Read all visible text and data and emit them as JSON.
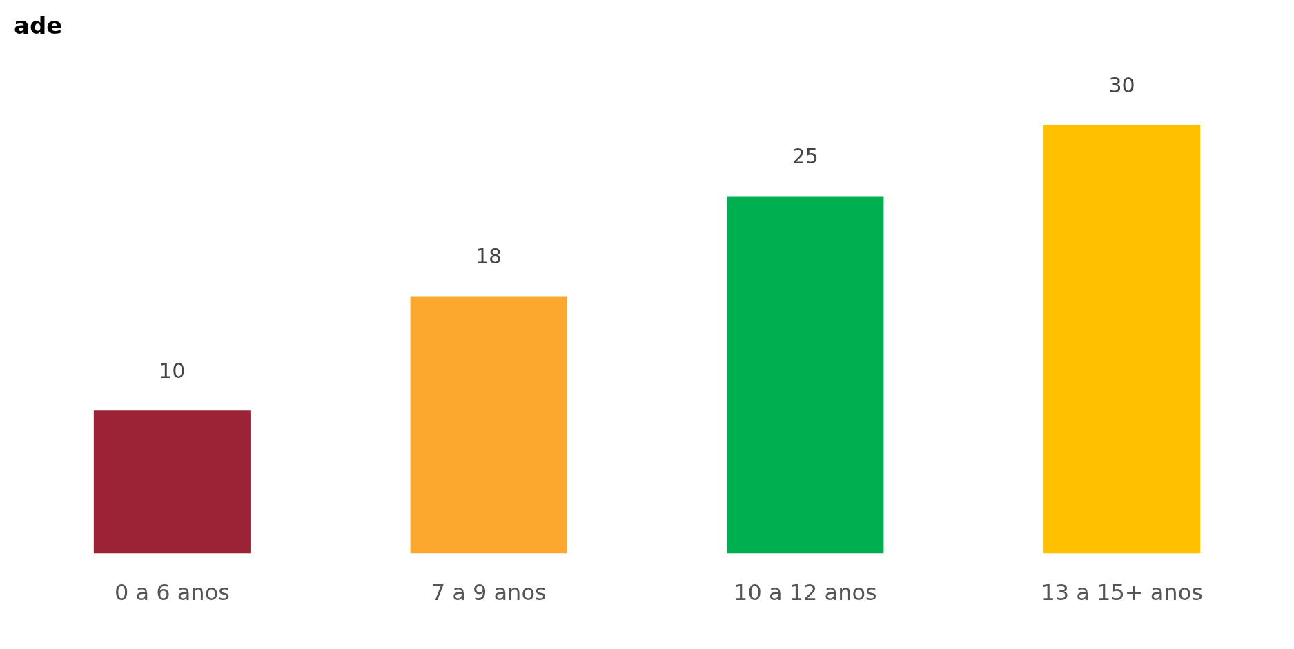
{
  "chart_data": {
    "type": "bar",
    "title": "ade",
    "categories": [
      "0 a 6 anos",
      "7 a 9 anos",
      "10 a 12 anos",
      "13 a 15+ anos"
    ],
    "values": [
      10,
      18,
      25,
      30
    ],
    "colors": [
      "#9b2335",
      "#fca72e",
      "#00b050",
      "#ffc000"
    ],
    "data_labels": true,
    "grid": false,
    "legend": false
  }
}
